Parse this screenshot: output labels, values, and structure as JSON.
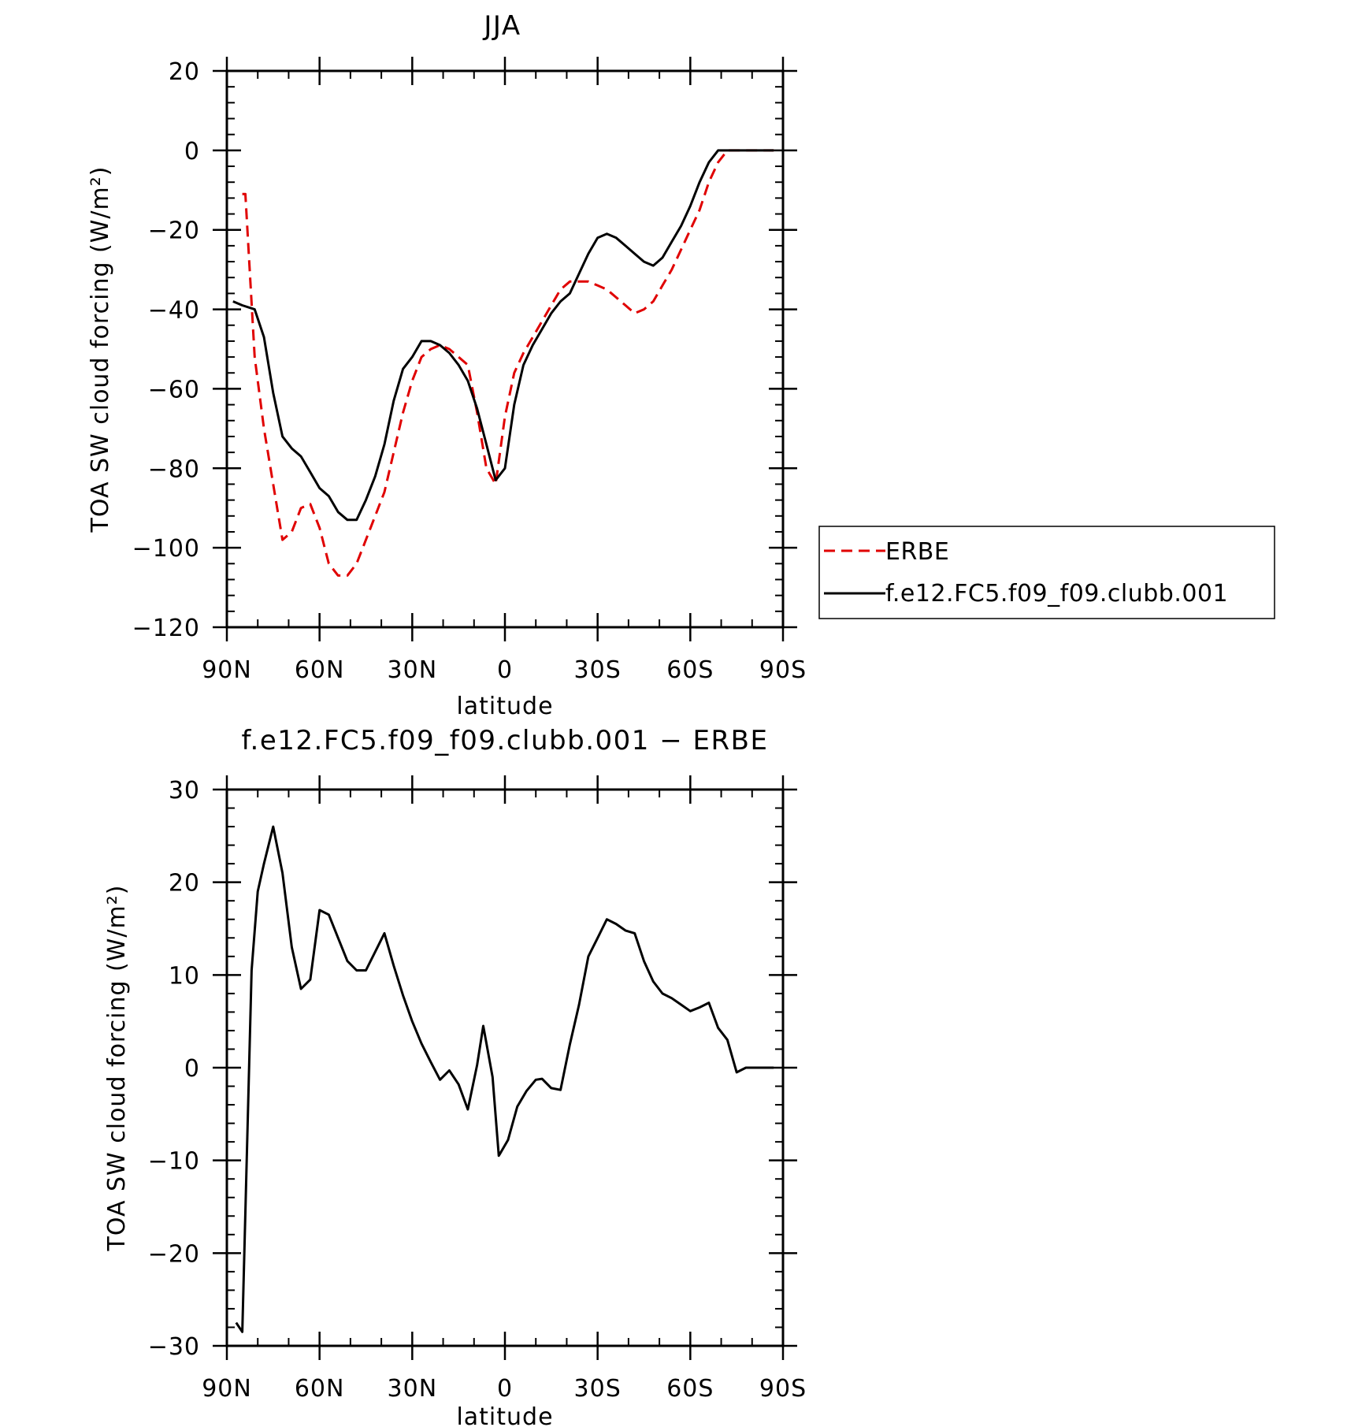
{
  "chart_data": [
    {
      "type": "line",
      "title": "JJA",
      "xlabel": "latitude",
      "ylabel": "TOA SW cloud forcing (W/m²)",
      "xlim": [
        90,
        -90
      ],
      "ylim": [
        -120,
        20
      ],
      "x_ticks": [
        90,
        60,
        30,
        0,
        -30,
        -60,
        -90
      ],
      "x_tick_labels": [
        "90N",
        "60N",
        "30N",
        "0",
        "30S",
        "60S",
        "90S"
      ],
      "y_ticks": [
        20,
        0,
        -20,
        -40,
        -60,
        -80,
        -100,
        -120
      ],
      "y_tick_labels": [
        "20",
        "0",
        "−20",
        "−40",
        "−60",
        "−80",
        "−100",
        "−120"
      ],
      "legend": "right",
      "series": [
        {
          "name": "ERBE",
          "color": "#e00000",
          "style": "dashed",
          "x": [
            85,
            84,
            81,
            78,
            75,
            72,
            69,
            66,
            63,
            60,
            57,
            54,
            51,
            48,
            45,
            42,
            39,
            36,
            33,
            30,
            27,
            24,
            21,
            18,
            15,
            12,
            9,
            6,
            3,
            0,
            -3,
            -6,
            -9,
            -12,
            -15,
            -18,
            -21,
            -24,
            -27,
            -30,
            -33,
            -36,
            -39,
            -42,
            -45,
            -48,
            -51,
            -54,
            -57,
            -60,
            -63,
            -66,
            -69,
            -72,
            -75,
            -78,
            -81,
            -84,
            -87
          ],
          "values": [
            -11,
            -11,
            -52,
            -70,
            -84,
            -98,
            -96,
            -90,
            -89,
            -95,
            -104,
            -107,
            -107,
            -104,
            -98,
            -92,
            -86,
            -76,
            -66,
            -58,
            -52,
            -50,
            -49,
            -50,
            -52,
            -54,
            -66,
            -80,
            -84,
            -67,
            -56,
            -51,
            -47,
            -43,
            -39,
            -35,
            -33,
            -33,
            -33,
            -34,
            -35,
            -37,
            -39,
            -41,
            -40,
            -38,
            -34,
            -30,
            -25,
            -20,
            -15,
            -8,
            -3,
            0,
            0,
            0,
            0,
            0,
            0
          ]
        },
        {
          "name": "f.e12.FC5.f09_f09.clubb.001",
          "color": "#000000",
          "style": "solid",
          "x": [
            88,
            85,
            81,
            78,
            75,
            72,
            69,
            66,
            63,
            60,
            57,
            54,
            51,
            48,
            45,
            42,
            39,
            36,
            33,
            30,
            27,
            24,
            21,
            18,
            15,
            12,
            9,
            6,
            3,
            0,
            -3,
            -6,
            -9,
            -12,
            -15,
            -18,
            -21,
            -24,
            -27,
            -30,
            -33,
            -36,
            -39,
            -42,
            -45,
            -48,
            -51,
            -54,
            -57,
            -60,
            -63,
            -66,
            -69,
            -72,
            -75,
            -78,
            -81,
            -84,
            -87
          ],
          "values": [
            -38,
            -39,
            -40,
            -47,
            -61,
            -72,
            -75,
            -77,
            -81,
            -85,
            -87,
            -91,
            -93,
            -93,
            -88,
            -82,
            -74,
            -63,
            -55,
            -52,
            -48,
            -48,
            -49,
            -51,
            -54,
            -58,
            -65,
            -74,
            -83,
            -80,
            -64,
            -54,
            -49,
            -45,
            -41,
            -38,
            -36,
            -31,
            -26,
            -22,
            -21,
            -22,
            -24,
            -26,
            -28,
            -29,
            -27,
            -23,
            -19,
            -14,
            -8,
            -3,
            0,
            0,
            0,
            0,
            0,
            0,
            0
          ]
        }
      ]
    },
    {
      "type": "line",
      "title": "f.e12.FC5.f09_f09.clubb.001 − ERBE",
      "xlabel": "latitude",
      "ylabel": "TOA SW cloud forcing (W/m²)",
      "xlim": [
        90,
        -90
      ],
      "ylim": [
        -30,
        30
      ],
      "x_ticks": [
        90,
        60,
        30,
        0,
        -30,
        -60,
        -90
      ],
      "x_tick_labels": [
        "90N",
        "60N",
        "30N",
        "0",
        "30S",
        "60S",
        "90S"
      ],
      "y_ticks": [
        30,
        20,
        10,
        0,
        -10,
        -20,
        -30
      ],
      "y_tick_labels": [
        "30",
        "20",
        "10",
        "0",
        "−10",
        "−20",
        "−30"
      ],
      "series": [
        {
          "color": "#000000",
          "style": "solid",
          "x": [
            87,
            85,
            82,
            80,
            78,
            75,
            72,
            69,
            66,
            63,
            60,
            57,
            54,
            51,
            48,
            45,
            42,
            39,
            36,
            33,
            30,
            27,
            24,
            21,
            18,
            15,
            12,
            9,
            7,
            4,
            2,
            -1,
            -4,
            -7,
            -10,
            -12,
            -15,
            -18,
            -21,
            -24,
            -27,
            -30,
            -33,
            -36,
            -39,
            -42,
            -45,
            -48,
            -51,
            -54,
            -57,
            -60,
            -63,
            -66,
            -69,
            -72,
            -75,
            -78,
            -81,
            -84,
            -87
          ],
          "values": [
            -27.5,
            -28.5,
            10.5,
            19,
            22,
            26,
            21,
            13,
            8.5,
            9.5,
            17,
            16.5,
            14,
            11.5,
            10.5,
            10.5,
            12.5,
            14.5,
            11,
            7.8,
            5,
            2.6,
            0.6,
            -1.3,
            -0.3,
            -1.8,
            -4.5,
            0.3,
            4.5,
            -1,
            -9.5,
            -7.8,
            -4.2,
            -2.5,
            -1.3,
            -1.2,
            -2.2,
            -2.4,
            2.5,
            6.8,
            12,
            14,
            16,
            15.5,
            14.8,
            14.5,
            11.5,
            9.3,
            8,
            7.5,
            6.8,
            6.1,
            6.5,
            7,
            4.3,
            3,
            -0.5,
            0,
            0,
            0,
            0
          ]
        }
      ]
    }
  ]
}
